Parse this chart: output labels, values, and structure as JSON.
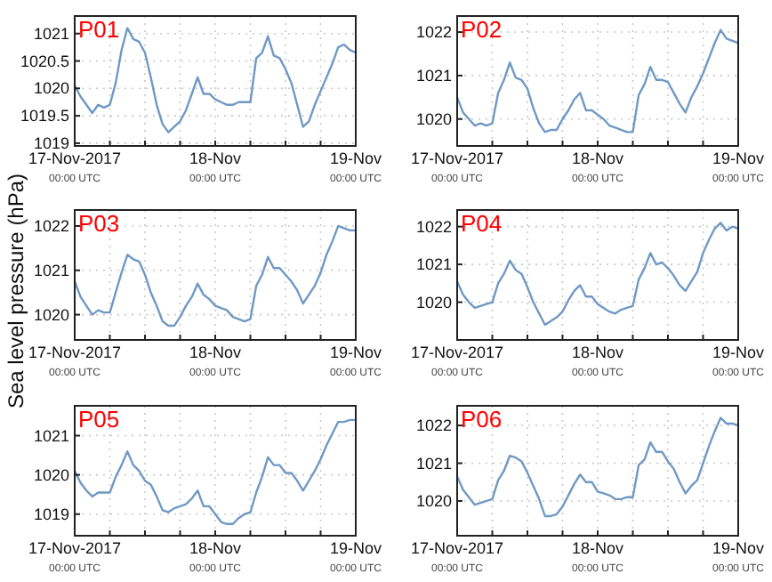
{
  "chart_data": [
    {
      "type": "line",
      "title": "P01",
      "x": [
        "2017-11-17T00:00",
        "2017-11-17T01:00",
        "2017-11-17T02:00",
        "2017-11-17T03:00",
        "2017-11-17T04:00",
        "2017-11-17T05:00",
        "2017-11-17T06:00",
        "2017-11-17T07:00",
        "2017-11-17T08:00",
        "2017-11-17T09:00",
        "2017-11-17T10:00",
        "2017-11-17T11:00",
        "2017-11-17T12:00",
        "2017-11-17T13:00",
        "2017-11-17T14:00",
        "2017-11-17T15:00",
        "2017-11-17T16:00",
        "2017-11-17T17:00",
        "2017-11-17T18:00",
        "2017-11-17T19:00",
        "2017-11-17T20:00",
        "2017-11-17T21:00",
        "2017-11-17T22:00",
        "2017-11-17T23:00",
        "2017-11-18T00:00",
        "2017-11-18T01:00",
        "2017-11-18T02:00",
        "2017-11-18T03:00",
        "2017-11-18T04:00",
        "2017-11-18T05:00",
        "2017-11-18T06:00",
        "2017-11-18T07:00",
        "2017-11-18T08:00",
        "2017-11-18T09:00",
        "2017-11-18T10:00",
        "2017-11-18T11:00",
        "2017-11-18T12:00",
        "2017-11-18T13:00",
        "2017-11-18T14:00",
        "2017-11-18T15:00",
        "2017-11-18T16:00",
        "2017-11-18T17:00",
        "2017-11-18T18:00",
        "2017-11-18T19:00",
        "2017-11-18T20:00",
        "2017-11-18T21:00",
        "2017-11-18T22:00",
        "2017-11-18T23:00",
        "2017-11-19T00:00"
      ],
      "series": [
        {
          "color": "#6f99c4",
          "values": [
            1020.05,
            1019.85,
            1019.7,
            1019.55,
            1019.7,
            1019.65,
            1019.7,
            1020.1,
            1020.7,
            1021.1,
            1020.9,
            1020.85,
            1020.65,
            1020.2,
            1019.7,
            1019.35,
            1019.2,
            1019.3,
            1019.4,
            1019.6,
            1019.9,
            1020.2,
            1019.9,
            1019.9,
            1019.8,
            1019.75,
            1019.7,
            1019.7,
            1019.75,
            1019.75,
            1019.75,
            1020.55,
            1020.65,
            1020.95,
            1020.6,
            1020.55,
            1020.35,
            1020.1,
            1019.7,
            1019.3,
            1019.4,
            1019.7,
            1019.95,
            1020.2,
            1020.45,
            1020.75,
            1020.8,
            1020.7,
            1020.65
          ]
        }
      ],
      "xlim": [
        "2017-11-17T00:00",
        "2017-11-19T00:00"
      ],
      "xticks": [
        {
          "value": "2017-11-17T00:00",
          "label": "17-Nov-2017\n00:00 UTC"
        },
        {
          "value": "2017-11-17T06:00",
          "label": null
        },
        {
          "value": "2017-11-17T12:00",
          "label": null
        },
        {
          "value": "2017-11-17T18:00",
          "label": null
        },
        {
          "value": "2017-11-18T00:00",
          "label": "18-Nov\n00:00 UTC"
        },
        {
          "value": "2017-11-18T06:00",
          "label": null
        },
        {
          "value": "2017-11-18T12:00",
          "label": null
        },
        {
          "value": "2017-11-18T18:00",
          "label": null
        },
        {
          "value": "2017-11-19T00:00",
          "label": "19-Nov\n00:00 UTC"
        }
      ],
      "ylim": [
        1018.95,
        1021.32
      ],
      "yticks": [
        1019,
        1019.5,
        1020,
        1020.5,
        1021
      ],
      "grid": true
    },
    {
      "type": "line",
      "title": "P02",
      "x": [
        "2017-11-17T00:00",
        "2017-11-17T01:00",
        "2017-11-17T02:00",
        "2017-11-17T03:00",
        "2017-11-17T04:00",
        "2017-11-17T05:00",
        "2017-11-17T06:00",
        "2017-11-17T07:00",
        "2017-11-17T08:00",
        "2017-11-17T09:00",
        "2017-11-17T10:00",
        "2017-11-17T11:00",
        "2017-11-17T12:00",
        "2017-11-17T13:00",
        "2017-11-17T14:00",
        "2017-11-17T15:00",
        "2017-11-17T16:00",
        "2017-11-17T17:00",
        "2017-11-17T18:00",
        "2017-11-17T19:00",
        "2017-11-17T20:00",
        "2017-11-17T21:00",
        "2017-11-17T22:00",
        "2017-11-17T23:00",
        "2017-11-18T00:00",
        "2017-11-18T01:00",
        "2017-11-18T02:00",
        "2017-11-18T03:00",
        "2017-11-18T04:00",
        "2017-11-18T05:00",
        "2017-11-18T06:00",
        "2017-11-18T07:00",
        "2017-11-18T08:00",
        "2017-11-18T09:00",
        "2017-11-18T10:00",
        "2017-11-18T11:00",
        "2017-11-18T12:00",
        "2017-11-18T13:00",
        "2017-11-18T14:00",
        "2017-11-18T15:00",
        "2017-11-18T16:00",
        "2017-11-18T17:00",
        "2017-11-18T18:00",
        "2017-11-18T19:00",
        "2017-11-18T20:00",
        "2017-11-18T21:00",
        "2017-11-18T22:00",
        "2017-11-18T23:00",
        "2017-11-19T00:00"
      ],
      "series": [
        {
          "color": "#6f99c4",
          "values": [
            1020.5,
            1020.15,
            1020.0,
            1019.85,
            1019.9,
            1019.85,
            1019.9,
            1020.6,
            1020.9,
            1021.3,
            1020.95,
            1020.9,
            1020.7,
            1020.25,
            1019.9,
            1019.7,
            1019.75,
            1019.75,
            1020.0,
            1020.2,
            1020.45,
            1020.6,
            1020.2,
            1020.2,
            1020.1,
            1020.0,
            1019.85,
            1019.8,
            1019.75,
            1019.7,
            1019.7,
            1020.55,
            1020.8,
            1021.2,
            1020.9,
            1020.9,
            1020.85,
            1020.6,
            1020.35,
            1020.15,
            1020.5,
            1020.75,
            1021.05,
            1021.4,
            1021.75,
            1022.05,
            1021.85,
            1021.8,
            1021.75
          ]
        }
      ],
      "xlim": [
        "2017-11-17T00:00",
        "2017-11-19T00:00"
      ],
      "xticks": [
        {
          "value": "2017-11-17T00:00",
          "label": "17-Nov-2017\n00:00 UTC"
        },
        {
          "value": "2017-11-17T06:00",
          "label": null
        },
        {
          "value": "2017-11-17T12:00",
          "label": null
        },
        {
          "value": "2017-11-17T18:00",
          "label": null
        },
        {
          "value": "2017-11-18T00:00",
          "label": "18-Nov\n00:00 UTC"
        },
        {
          "value": "2017-11-18T06:00",
          "label": null
        },
        {
          "value": "2017-11-18T12:00",
          "label": null
        },
        {
          "value": "2017-11-18T18:00",
          "label": null
        },
        {
          "value": "2017-11-19T00:00",
          "label": "19-Nov\n00:00 UTC"
        }
      ],
      "ylim": [
        1019.38,
        1022.37
      ],
      "yticks": [
        1020,
        1021,
        1022
      ],
      "grid": true
    },
    {
      "type": "line",
      "title": "P03",
      "ylabel": "Sea level pressure (hPa)",
      "x": [
        "2017-11-17T00:00",
        "2017-11-17T01:00",
        "2017-11-17T02:00",
        "2017-11-17T03:00",
        "2017-11-17T04:00",
        "2017-11-17T05:00",
        "2017-11-17T06:00",
        "2017-11-17T07:00",
        "2017-11-17T08:00",
        "2017-11-17T09:00",
        "2017-11-17T10:00",
        "2017-11-17T11:00",
        "2017-11-17T12:00",
        "2017-11-17T13:00",
        "2017-11-17T14:00",
        "2017-11-17T15:00",
        "2017-11-17T16:00",
        "2017-11-17T17:00",
        "2017-11-17T18:00",
        "2017-11-17T19:00",
        "2017-11-17T20:00",
        "2017-11-17T21:00",
        "2017-11-17T22:00",
        "2017-11-17T23:00",
        "2017-11-18T00:00",
        "2017-11-18T01:00",
        "2017-11-18T02:00",
        "2017-11-18T03:00",
        "2017-11-18T04:00",
        "2017-11-18T05:00",
        "2017-11-18T06:00",
        "2017-11-18T07:00",
        "2017-11-18T08:00",
        "2017-11-18T09:00",
        "2017-11-18T10:00",
        "2017-11-18T11:00",
        "2017-11-18T12:00",
        "2017-11-18T13:00",
        "2017-11-18T14:00",
        "2017-11-18T15:00",
        "2017-11-18T16:00",
        "2017-11-18T17:00",
        "2017-11-18T18:00",
        "2017-11-18T19:00",
        "2017-11-18T20:00",
        "2017-11-18T21:00",
        "2017-11-18T22:00",
        "2017-11-18T23:00",
        "2017-11-19T00:00"
      ],
      "series": [
        {
          "color": "#6f99c4",
          "values": [
            1020.75,
            1020.4,
            1020.2,
            1020.0,
            1020.1,
            1020.05,
            1020.05,
            1020.5,
            1020.95,
            1021.35,
            1021.25,
            1021.2,
            1020.9,
            1020.5,
            1020.2,
            1019.85,
            1019.75,
            1019.75,
            1019.95,
            1020.2,
            1020.4,
            1020.7,
            1020.45,
            1020.35,
            1020.2,
            1020.15,
            1020.1,
            1019.95,
            1019.9,
            1019.85,
            1019.9,
            1020.65,
            1020.9,
            1021.3,
            1021.05,
            1021.05,
            1020.9,
            1020.75,
            1020.55,
            1020.25,
            1020.45,
            1020.65,
            1020.95,
            1021.35,
            1021.65,
            1022.0,
            1021.95,
            1021.9,
            1021.9
          ]
        }
      ],
      "xlim": [
        "2017-11-17T00:00",
        "2017-11-19T00:00"
      ],
      "xticks": [
        {
          "value": "2017-11-17T00:00",
          "label": "17-Nov-2017\n00:00 UTC"
        },
        {
          "value": "2017-11-17T06:00",
          "label": null
        },
        {
          "value": "2017-11-17T12:00",
          "label": null
        },
        {
          "value": "2017-11-17T18:00",
          "label": null
        },
        {
          "value": "2017-11-18T00:00",
          "label": "18-Nov\n00:00 UTC"
        },
        {
          "value": "2017-11-18T06:00",
          "label": null
        },
        {
          "value": "2017-11-18T12:00",
          "label": null
        },
        {
          "value": "2017-11-18T18:00",
          "label": null
        },
        {
          "value": "2017-11-19T00:00",
          "label": "19-Nov\n00:00 UTC"
        }
      ],
      "ylim": [
        1019.43,
        1022.36
      ],
      "yticks": [
        1020,
        1021,
        1022
      ],
      "grid": true
    },
    {
      "type": "line",
      "title": "P04",
      "x": [
        "2017-11-17T00:00",
        "2017-11-17T01:00",
        "2017-11-17T02:00",
        "2017-11-17T03:00",
        "2017-11-17T04:00",
        "2017-11-17T05:00",
        "2017-11-17T06:00",
        "2017-11-17T07:00",
        "2017-11-17T08:00",
        "2017-11-17T09:00",
        "2017-11-17T10:00",
        "2017-11-17T11:00",
        "2017-11-17T12:00",
        "2017-11-17T13:00",
        "2017-11-17T14:00",
        "2017-11-17T15:00",
        "2017-11-17T16:00",
        "2017-11-17T17:00",
        "2017-11-17T18:00",
        "2017-11-17T19:00",
        "2017-11-17T20:00",
        "2017-11-17T21:00",
        "2017-11-17T22:00",
        "2017-11-17T23:00",
        "2017-11-18T00:00",
        "2017-11-18T01:00",
        "2017-11-18T02:00",
        "2017-11-18T03:00",
        "2017-11-18T04:00",
        "2017-11-18T05:00",
        "2017-11-18T06:00",
        "2017-11-18T07:00",
        "2017-11-18T08:00",
        "2017-11-18T09:00",
        "2017-11-18T10:00",
        "2017-11-18T11:00",
        "2017-11-18T12:00",
        "2017-11-18T13:00",
        "2017-11-18T14:00",
        "2017-11-18T15:00",
        "2017-11-18T16:00",
        "2017-11-18T17:00",
        "2017-11-18T18:00",
        "2017-11-18T19:00",
        "2017-11-18T20:00",
        "2017-11-18T21:00",
        "2017-11-18T22:00",
        "2017-11-18T23:00",
        "2017-11-19T00:00"
      ],
      "series": [
        {
          "color": "#6f99c4",
          "values": [
            1020.55,
            1020.2,
            1020.0,
            1019.85,
            1019.9,
            1019.95,
            1020.0,
            1020.5,
            1020.75,
            1021.1,
            1020.85,
            1020.75,
            1020.4,
            1020.0,
            1019.7,
            1019.4,
            1019.5,
            1019.6,
            1019.75,
            1020.05,
            1020.3,
            1020.45,
            1020.15,
            1020.15,
            1019.95,
            1019.85,
            1019.75,
            1019.7,
            1019.8,
            1019.85,
            1019.9,
            1020.6,
            1020.9,
            1021.3,
            1021.0,
            1021.05,
            1020.9,
            1020.7,
            1020.45,
            1020.3,
            1020.55,
            1020.8,
            1021.3,
            1021.65,
            1021.95,
            1022.1,
            1021.9,
            1022.0,
            1021.95
          ]
        }
      ],
      "xlim": [
        "2017-11-17T00:00",
        "2017-11-19T00:00"
      ],
      "xticks": [
        {
          "value": "2017-11-17T00:00",
          "label": "17-Nov-2017\n00:00 UTC"
        },
        {
          "value": "2017-11-17T06:00",
          "label": null
        },
        {
          "value": "2017-11-17T12:00",
          "label": null
        },
        {
          "value": "2017-11-17T18:00",
          "label": null
        },
        {
          "value": "2017-11-18T00:00",
          "label": "18-Nov\n00:00 UTC"
        },
        {
          "value": "2017-11-18T06:00",
          "label": null
        },
        {
          "value": "2017-11-18T12:00",
          "label": null
        },
        {
          "value": "2017-11-18T18:00",
          "label": null
        },
        {
          "value": "2017-11-19T00:00",
          "label": "19-Nov\n00:00 UTC"
        }
      ],
      "ylim": [
        1019.0,
        1022.44
      ],
      "yticks": [
        1020,
        1021,
        1022
      ],
      "grid": true
    },
    {
      "type": "line",
      "title": "P05",
      "x": [
        "2017-11-17T00:00",
        "2017-11-17T01:00",
        "2017-11-17T02:00",
        "2017-11-17T03:00",
        "2017-11-17T04:00",
        "2017-11-17T05:00",
        "2017-11-17T06:00",
        "2017-11-17T07:00",
        "2017-11-17T08:00",
        "2017-11-17T09:00",
        "2017-11-17T10:00",
        "2017-11-17T11:00",
        "2017-11-17T12:00",
        "2017-11-17T13:00",
        "2017-11-17T14:00",
        "2017-11-17T15:00",
        "2017-11-17T16:00",
        "2017-11-17T17:00",
        "2017-11-17T18:00",
        "2017-11-17T19:00",
        "2017-11-17T20:00",
        "2017-11-17T21:00",
        "2017-11-17T22:00",
        "2017-11-17T23:00",
        "2017-11-18T00:00",
        "2017-11-18T01:00",
        "2017-11-18T02:00",
        "2017-11-18T03:00",
        "2017-11-18T04:00",
        "2017-11-18T05:00",
        "2017-11-18T06:00",
        "2017-11-18T07:00",
        "2017-11-18T08:00",
        "2017-11-18T09:00",
        "2017-11-18T10:00",
        "2017-11-18T11:00",
        "2017-11-18T12:00",
        "2017-11-18T13:00",
        "2017-11-18T14:00",
        "2017-11-18T15:00",
        "2017-11-18T16:00",
        "2017-11-18T17:00",
        "2017-11-18T18:00",
        "2017-11-18T19:00",
        "2017-11-18T20:00",
        "2017-11-18T21:00",
        "2017-11-18T22:00",
        "2017-11-18T23:00",
        "2017-11-19T00:00"
      ],
      "series": [
        {
          "color": "#6f99c4",
          "values": [
            1020.1,
            1019.8,
            1019.6,
            1019.45,
            1019.55,
            1019.55,
            1019.55,
            1019.95,
            1020.25,
            1020.6,
            1020.25,
            1020.1,
            1019.85,
            1019.75,
            1019.45,
            1019.1,
            1019.05,
            1019.15,
            1019.2,
            1019.25,
            1019.4,
            1019.6,
            1019.2,
            1019.2,
            1019.0,
            1018.8,
            1018.75,
            1018.75,
            1018.9,
            1019.0,
            1019.05,
            1019.55,
            1019.95,
            1020.45,
            1020.25,
            1020.25,
            1020.05,
            1020.05,
            1019.85,
            1019.6,
            1019.85,
            1020.1,
            1020.4,
            1020.75,
            1021.05,
            1021.35,
            1021.35,
            1021.4,
            1021.4
          ]
        }
      ],
      "xlim": [
        "2017-11-17T00:00",
        "2017-11-19T00:00"
      ],
      "xticks": [
        {
          "value": "2017-11-17T00:00",
          "label": "17-Nov-2017\n00:00 UTC"
        },
        {
          "value": "2017-11-17T06:00",
          "label": null
        },
        {
          "value": "2017-11-17T12:00",
          "label": null
        },
        {
          "value": "2017-11-17T18:00",
          "label": null
        },
        {
          "value": "2017-11-18T00:00",
          "label": "18-Nov\n00:00 UTC"
        },
        {
          "value": "2017-11-18T06:00",
          "label": null
        },
        {
          "value": "2017-11-18T12:00",
          "label": null
        },
        {
          "value": "2017-11-18T18:00",
          "label": null
        },
        {
          "value": "2017-11-19T00:00",
          "label": "19-Nov\n00:00 UTC"
        }
      ],
      "ylim": [
        1018.45,
        1021.76
      ],
      "yticks": [
        1019,
        1020,
        1021
      ],
      "grid": true
    },
    {
      "type": "line",
      "title": "P06",
      "x": [
        "2017-11-17T00:00",
        "2017-11-17T01:00",
        "2017-11-17T02:00",
        "2017-11-17T03:00",
        "2017-11-17T04:00",
        "2017-11-17T05:00",
        "2017-11-17T06:00",
        "2017-11-17T07:00",
        "2017-11-17T08:00",
        "2017-11-17T09:00",
        "2017-11-17T10:00",
        "2017-11-17T11:00",
        "2017-11-17T12:00",
        "2017-11-17T13:00",
        "2017-11-17T14:00",
        "2017-11-17T15:00",
        "2017-11-17T16:00",
        "2017-11-17T17:00",
        "2017-11-17T18:00",
        "2017-11-17T19:00",
        "2017-11-17T20:00",
        "2017-11-17T21:00",
        "2017-11-17T22:00",
        "2017-11-17T23:00",
        "2017-11-18T00:00",
        "2017-11-18T01:00",
        "2017-11-18T02:00",
        "2017-11-18T03:00",
        "2017-11-18T04:00",
        "2017-11-18T05:00",
        "2017-11-18T06:00",
        "2017-11-18T07:00",
        "2017-11-18T08:00",
        "2017-11-18T09:00",
        "2017-11-18T10:00",
        "2017-11-18T11:00",
        "2017-11-18T12:00",
        "2017-11-18T13:00",
        "2017-11-18T14:00",
        "2017-11-18T15:00",
        "2017-11-18T16:00",
        "2017-11-18T17:00",
        "2017-11-18T18:00",
        "2017-11-18T19:00",
        "2017-11-18T20:00",
        "2017-11-18T21:00",
        "2017-11-18T22:00",
        "2017-11-18T23:00",
        "2017-11-19T00:00"
      ],
      "series": [
        {
          "color": "#6f99c4",
          "values": [
            1020.65,
            1020.3,
            1020.1,
            1019.9,
            1019.95,
            1020.0,
            1020.05,
            1020.55,
            1020.8,
            1021.2,
            1021.15,
            1021.05,
            1020.75,
            1020.4,
            1020.05,
            1019.6,
            1019.6,
            1019.65,
            1019.85,
            1020.15,
            1020.45,
            1020.7,
            1020.5,
            1020.5,
            1020.25,
            1020.2,
            1020.15,
            1020.05,
            1020.05,
            1020.1,
            1020.1,
            1020.95,
            1021.1,
            1021.55,
            1021.3,
            1021.3,
            1021.05,
            1020.85,
            1020.5,
            1020.2,
            1020.4,
            1020.55,
            1021.0,
            1021.45,
            1021.85,
            1022.2,
            1022.05,
            1022.05,
            1022.0
          ]
        }
      ],
      "xlim": [
        "2017-11-17T00:00",
        "2017-11-19T00:00"
      ],
      "xticks": [
        {
          "value": "2017-11-17T00:00",
          "label": "17-Nov-2017\n00:00 UTC"
        },
        {
          "value": "2017-11-17T06:00",
          "label": null
        },
        {
          "value": "2017-11-17T12:00",
          "label": null
        },
        {
          "value": "2017-11-17T18:00",
          "label": null
        },
        {
          "value": "2017-11-18T00:00",
          "label": "18-Nov\n00:00 UTC"
        },
        {
          "value": "2017-11-18T06:00",
          "label": null
        },
        {
          "value": "2017-11-18T12:00",
          "label": null
        },
        {
          "value": "2017-11-18T18:00",
          "label": null
        },
        {
          "value": "2017-11-19T00:00",
          "label": "19-Nov\n00:00 UTC"
        }
      ],
      "ylim": [
        1019.08,
        1022.52
      ],
      "yticks": [
        1020,
        1021,
        1022
      ],
      "grid": true
    }
  ]
}
